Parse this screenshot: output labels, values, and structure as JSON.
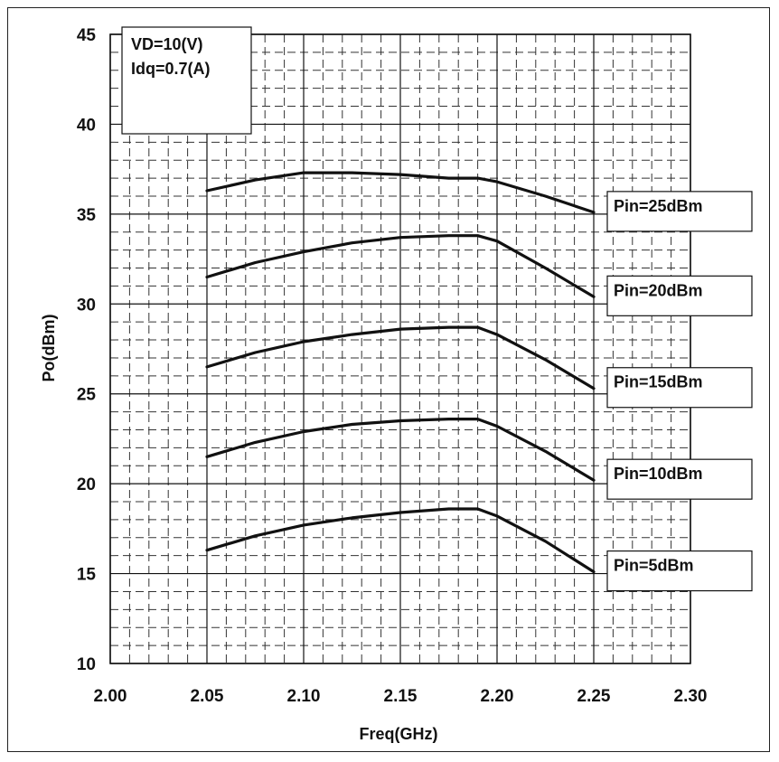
{
  "chart_data": {
    "type": "line",
    "xlabel": "Freq(GHz)",
    "ylabel": "Po(dBm)",
    "xlim": [
      2.0,
      2.3
    ],
    "ylim": [
      10,
      45
    ],
    "x_ticks": [
      "2.00",
      "2.05",
      "2.10",
      "2.15",
      "2.20",
      "2.25",
      "2.30"
    ],
    "y_ticks": [
      "10",
      "15",
      "20",
      "25",
      "30",
      "35",
      "40",
      "45"
    ],
    "grid": true,
    "annotations": [
      "VD=10(V)",
      "Idq=0.7(A)"
    ],
    "series": [
      {
        "name": "Pin=25dBm",
        "points": [
          [
            2.05,
            36.3
          ],
          [
            2.075,
            36.9
          ],
          [
            2.1,
            37.3
          ],
          [
            2.125,
            37.3
          ],
          [
            2.15,
            37.2
          ],
          [
            2.175,
            37.0
          ],
          [
            2.19,
            37.0
          ],
          [
            2.2,
            36.8
          ],
          [
            2.225,
            36.0
          ],
          [
            2.25,
            35.1
          ]
        ]
      },
      {
        "name": "Pin=20dBm",
        "points": [
          [
            2.05,
            31.5
          ],
          [
            2.075,
            32.3
          ],
          [
            2.1,
            32.9
          ],
          [
            2.125,
            33.4
          ],
          [
            2.15,
            33.7
          ],
          [
            2.175,
            33.8
          ],
          [
            2.19,
            33.8
          ],
          [
            2.2,
            33.5
          ],
          [
            2.225,
            32.0
          ],
          [
            2.25,
            30.4
          ]
        ]
      },
      {
        "name": "Pin=15dBm",
        "points": [
          [
            2.05,
            26.5
          ],
          [
            2.075,
            27.3
          ],
          [
            2.1,
            27.9
          ],
          [
            2.125,
            28.3
          ],
          [
            2.15,
            28.6
          ],
          [
            2.175,
            28.7
          ],
          [
            2.19,
            28.7
          ],
          [
            2.2,
            28.3
          ],
          [
            2.225,
            26.9
          ],
          [
            2.25,
            25.3
          ]
        ]
      },
      {
        "name": "Pin=10dBm",
        "points": [
          [
            2.05,
            21.5
          ],
          [
            2.075,
            22.3
          ],
          [
            2.1,
            22.9
          ],
          [
            2.125,
            23.3
          ],
          [
            2.15,
            23.5
          ],
          [
            2.175,
            23.6
          ],
          [
            2.19,
            23.6
          ],
          [
            2.2,
            23.2
          ],
          [
            2.225,
            21.8
          ],
          [
            2.25,
            20.2
          ]
        ]
      },
      {
        "name": "Pin=5dBm",
        "points": [
          [
            2.05,
            16.3
          ],
          [
            2.075,
            17.1
          ],
          [
            2.1,
            17.7
          ],
          [
            2.125,
            18.1
          ],
          [
            2.15,
            18.4
          ],
          [
            2.175,
            18.6
          ],
          [
            2.19,
            18.6
          ],
          [
            2.2,
            18.2
          ],
          [
            2.225,
            16.8
          ],
          [
            2.25,
            15.1
          ]
        ]
      }
    ]
  },
  "colors": {
    "line": "#111111",
    "grid_dash": "#333333",
    "grid_solid": "#111111",
    "background": "#ffffff"
  }
}
